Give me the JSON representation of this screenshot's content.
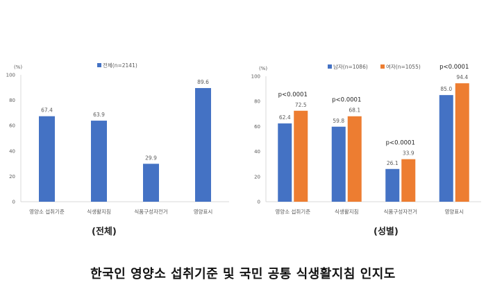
{
  "colors": {
    "blue": "#4472C4",
    "orange": "#ED7D31",
    "axis": "#D9D9D9",
    "text": "#595959"
  },
  "title": "한국인 영양소 섭취기준 및 국민 공통 식생활지침 인지도",
  "chart_data": [
    {
      "type": "bar",
      "caption": "(전체)",
      "unit_label": "(%)",
      "categories": [
        "영양소 섭취기준",
        "식생활지침",
        "식품구성자전거",
        "영양표시"
      ],
      "series": [
        {
          "name": "전체(n=2141)",
          "color": "#4472C4",
          "values": [
            67.4,
            63.9,
            29.9,
            89.6
          ]
        }
      ],
      "yticks": [
        "0",
        "20",
        "40",
        "60",
        "80",
        "100"
      ],
      "ylim": [
        0,
        100
      ],
      "grid": false,
      "legend": "top-center"
    },
    {
      "type": "bar",
      "caption": "(성별)",
      "unit_label": "(%)",
      "categories": [
        "영양소 섭취기준",
        "식생활지침",
        "식품구성자전거",
        "영양표시"
      ],
      "series": [
        {
          "name": "남자(n=1086)",
          "color": "#4472C4",
          "values": [
            62.4,
            59.8,
            26.1,
            85.0
          ]
        },
        {
          "name": "여자(n=1055)",
          "color": "#ED7D31",
          "values": [
            72.5,
            68.1,
            33.9,
            94.4
          ]
        }
      ],
      "annotations": [
        "p<0.0001",
        "p<0.0001",
        "p<0.0001",
        "p<0.0001"
      ],
      "yticks": [
        "0",
        "20",
        "40",
        "60",
        "80",
        "100"
      ],
      "ylim": [
        0,
        100
      ],
      "grid": false,
      "legend": "top-right"
    }
  ]
}
